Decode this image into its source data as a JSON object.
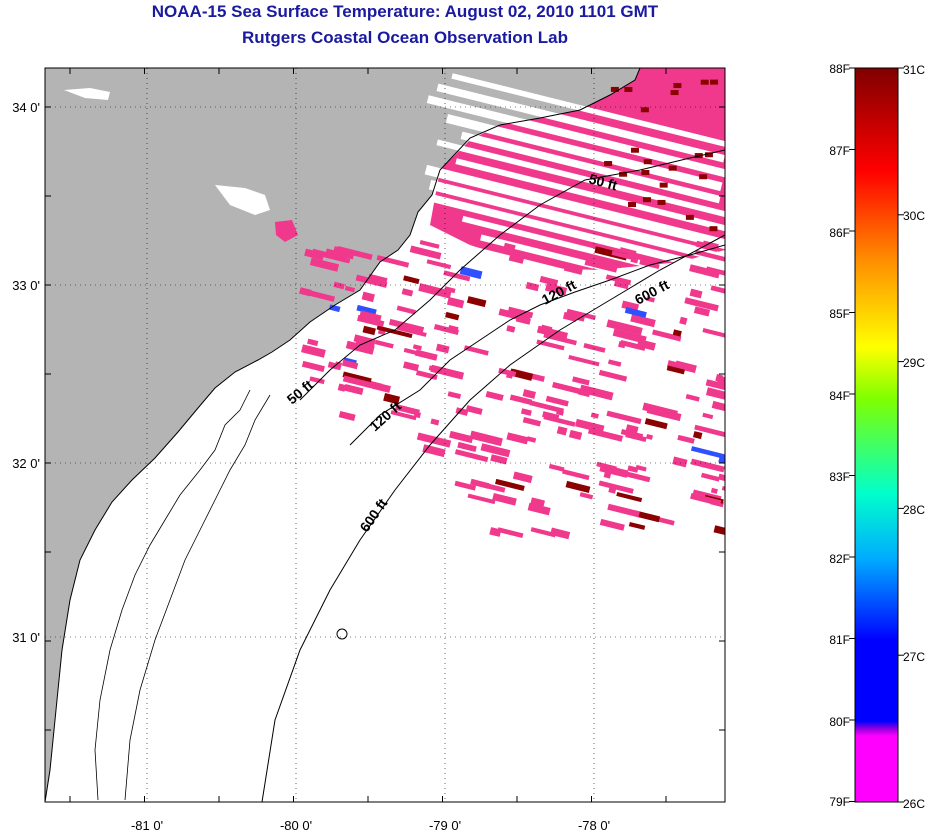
{
  "header": {
    "title": "NOAA-15 Sea Surface Temperature:  August 02, 2010 1101 GMT",
    "subtitle": "Rutgers Coastal Ocean Observation Lab"
  },
  "map": {
    "lon_labels": [
      "-81 0'",
      "-80 0'",
      "-79 0'",
      "-78 0'"
    ],
    "lat_labels": [
      "34 0'",
      "33 0'",
      "32 0'",
      "31 0'"
    ],
    "contour_labels": [
      "50 ft",
      "120 ft",
      "600 ft",
      "50 ft",
      "120 ft",
      "600 ft"
    ],
    "colors": {
      "land": "#b4b4b4",
      "ocean_nodata": "#ffffff",
      "sst_dominant": "#f0388c",
      "sst_warm": "#8b0000",
      "coastline": "#000000",
      "grid": "#000000"
    }
  },
  "colorbar": {
    "fahrenheit_labels": [
      "88F",
      "87F",
      "86F",
      "85F",
      "84F",
      "83F",
      "82F",
      "81F",
      "80F",
      "79F"
    ],
    "celsius_labels": [
      "31C",
      "30C",
      "29C",
      "28C",
      "27C",
      "26C"
    ],
    "colors": [
      "#ff00ff",
      "#8000ff",
      "#0000ff",
      "#00b0ff",
      "#00ffd0",
      "#80ff00",
      "#ffff00",
      "#ff8000",
      "#ff0000",
      "#800000"
    ]
  }
}
